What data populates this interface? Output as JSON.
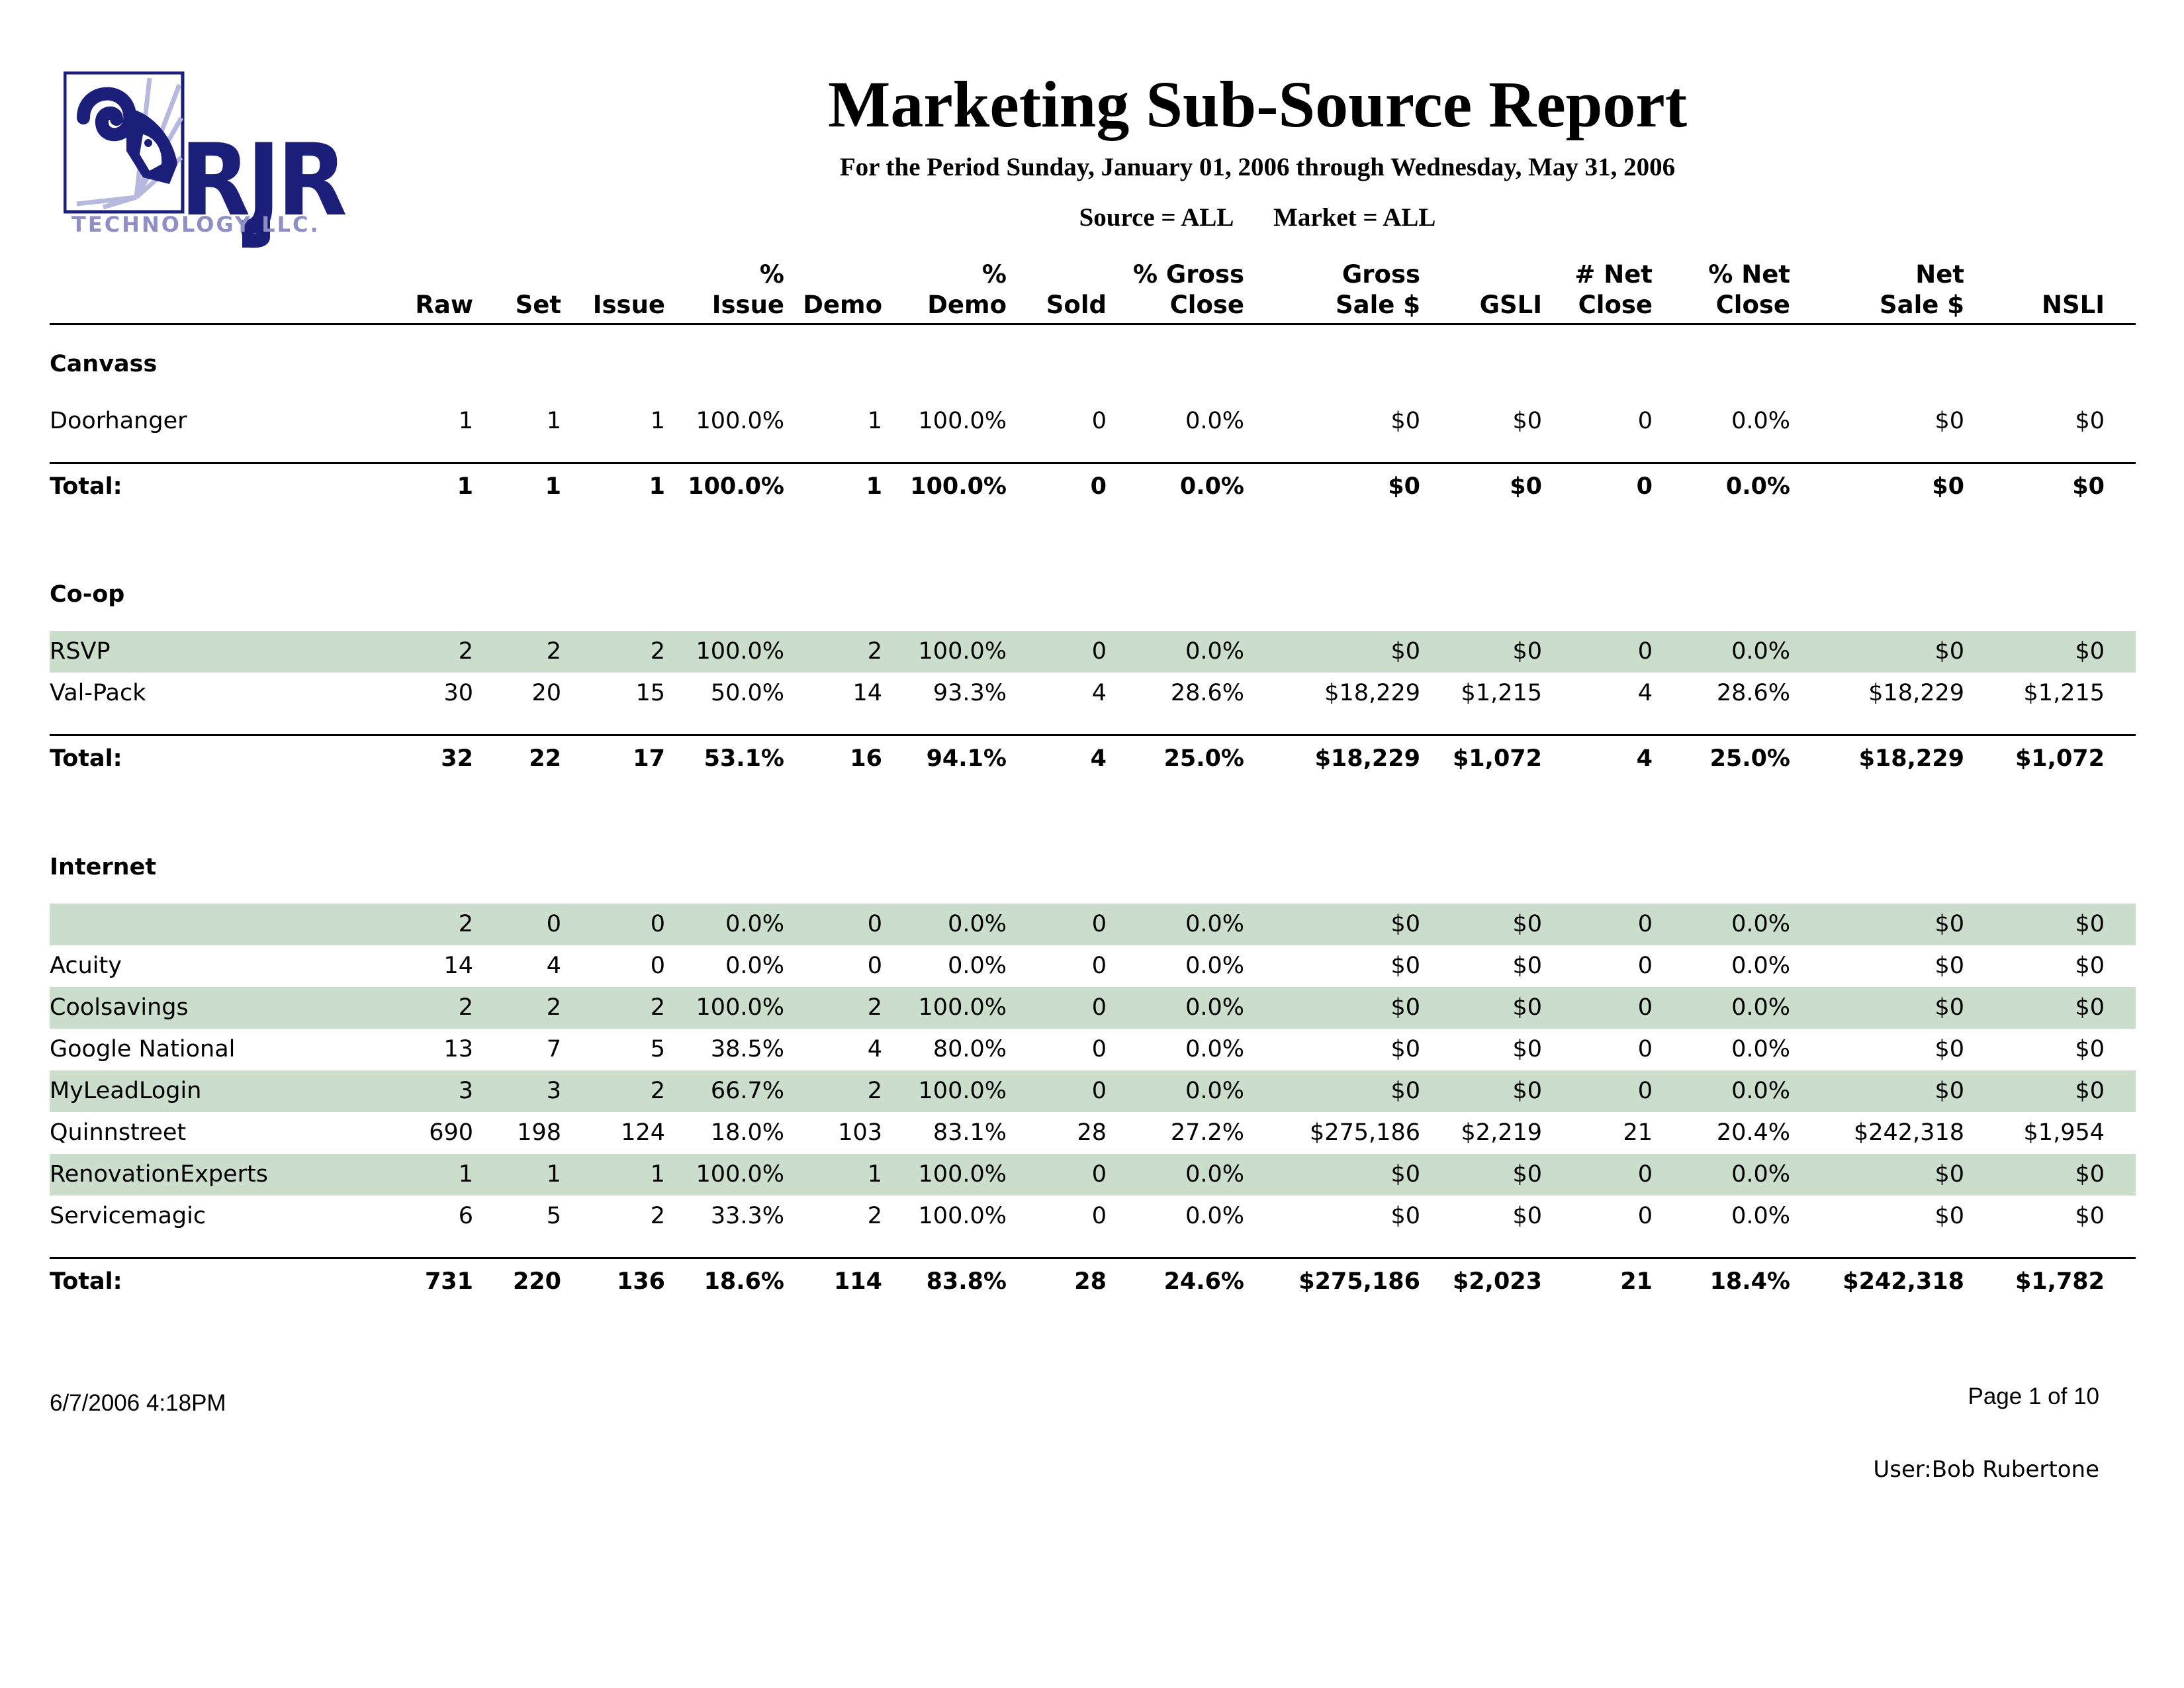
{
  "logo": {
    "wordmark": "RJR",
    "tagline": "TECHNOLOGY LLC."
  },
  "title": "Marketing Sub-Source Report",
  "subtitle": "For the Period Sunday, January 01, 2006 through Wednesday, May 31, 2006",
  "filters": {
    "source": "Source = ALL",
    "market": "Market = ALL"
  },
  "columns": [
    [
      "",
      "Raw"
    ],
    [
      "",
      "Set"
    ],
    [
      "",
      "Issue"
    ],
    [
      "%",
      "Issue"
    ],
    [
      "",
      "Demo"
    ],
    [
      "%",
      "Demo"
    ],
    [
      "",
      "Sold"
    ],
    [
      "% Gross",
      "Close"
    ],
    [
      "Gross",
      "Sale $"
    ],
    [
      "",
      "GSLI"
    ],
    [
      "# Net",
      "Close"
    ],
    [
      "% Net",
      "Close"
    ],
    [
      "Net",
      "Sale $"
    ],
    [
      "",
      "NSLI"
    ]
  ],
  "sections": [
    {
      "name": "Canvass",
      "rows": [
        {
          "label": "Doorhanger",
          "values": [
            "1",
            "1",
            "1",
            "100.0%",
            "1",
            "100.0%",
            "0",
            "0.0%",
            "$0",
            "$0",
            "0",
            "0.0%",
            "$0",
            "$0"
          ]
        }
      ],
      "total": {
        "label": "Total:",
        "values": [
          "1",
          "1",
          "1",
          "100.0%",
          "1",
          "100.0%",
          "0",
          "0.0%",
          "$0",
          "$0",
          "0",
          "0.0%",
          "$0",
          "$0"
        ]
      }
    },
    {
      "name": "Co-op",
      "rows": [
        {
          "label": "RSVP",
          "values": [
            "2",
            "2",
            "2",
            "100.0%",
            "2",
            "100.0%",
            "0",
            "0.0%",
            "$0",
            "$0",
            "0",
            "0.0%",
            "$0",
            "$0"
          ]
        },
        {
          "label": "Val-Pack",
          "values": [
            "30",
            "20",
            "15",
            "50.0%",
            "14",
            "93.3%",
            "4",
            "28.6%",
            "$18,229",
            "$1,215",
            "4",
            "28.6%",
            "$18,229",
            "$1,215"
          ]
        }
      ],
      "total": {
        "label": "Total:",
        "values": [
          "32",
          "22",
          "17",
          "53.1%",
          "16",
          "94.1%",
          "4",
          "25.0%",
          "$18,229",
          "$1,072",
          "4",
          "25.0%",
          "$18,229",
          "$1,072"
        ]
      }
    },
    {
      "name": "Internet",
      "rows": [
        {
          "label": "",
          "values": [
            "2",
            "0",
            "0",
            "0.0%",
            "0",
            "0.0%",
            "0",
            "0.0%",
            "$0",
            "$0",
            "0",
            "0.0%",
            "$0",
            "$0"
          ]
        },
        {
          "label": "Acuity",
          "values": [
            "14",
            "4",
            "0",
            "0.0%",
            "0",
            "0.0%",
            "0",
            "0.0%",
            "$0",
            "$0",
            "0",
            "0.0%",
            "$0",
            "$0"
          ]
        },
        {
          "label": "Coolsavings",
          "values": [
            "2",
            "2",
            "2",
            "100.0%",
            "2",
            "100.0%",
            "0",
            "0.0%",
            "$0",
            "$0",
            "0",
            "0.0%",
            "$0",
            "$0"
          ]
        },
        {
          "label": "Google National",
          "values": [
            "13",
            "7",
            "5",
            "38.5%",
            "4",
            "80.0%",
            "0",
            "0.0%",
            "$0",
            "$0",
            "0",
            "0.0%",
            "$0",
            "$0"
          ]
        },
        {
          "label": "MyLeadLogin",
          "values": [
            "3",
            "3",
            "2",
            "66.7%",
            "2",
            "100.0%",
            "0",
            "0.0%",
            "$0",
            "$0",
            "0",
            "0.0%",
            "$0",
            "$0"
          ]
        },
        {
          "label": "Quinnstreet",
          "values": [
            "690",
            "198",
            "124",
            "18.0%",
            "103",
            "83.1%",
            "28",
            "27.2%",
            "$275,186",
            "$2,219",
            "21",
            "20.4%",
            "$242,318",
            "$1,954"
          ]
        },
        {
          "label": "RenovationExperts",
          "values": [
            "1",
            "1",
            "1",
            "100.0%",
            "1",
            "100.0%",
            "0",
            "0.0%",
            "$0",
            "$0",
            "0",
            "0.0%",
            "$0",
            "$0"
          ]
        },
        {
          "label": "Servicemagic",
          "values": [
            "6",
            "5",
            "2",
            "33.3%",
            "2",
            "100.0%",
            "0",
            "0.0%",
            "$0",
            "$0",
            "0",
            "0.0%",
            "$0",
            "$0"
          ]
        }
      ],
      "total": {
        "label": "Total:",
        "values": [
          "731",
          "220",
          "136",
          "18.6%",
          "114",
          "83.8%",
          "28",
          "24.6%",
          "$275,186",
          "$2,023",
          "21",
          "18.4%",
          "$242,318",
          "$1,782"
        ]
      }
    }
  ],
  "footer": {
    "printed": "6/7/2006 4:18PM",
    "page": "Page 1 of 10",
    "user": "User:Bob Rubertone"
  },
  "colors": {
    "logo_navy": "#1b1f7a",
    "logo_lavender": "#8e8fc4",
    "row_shade": "#cadecb"
  }
}
